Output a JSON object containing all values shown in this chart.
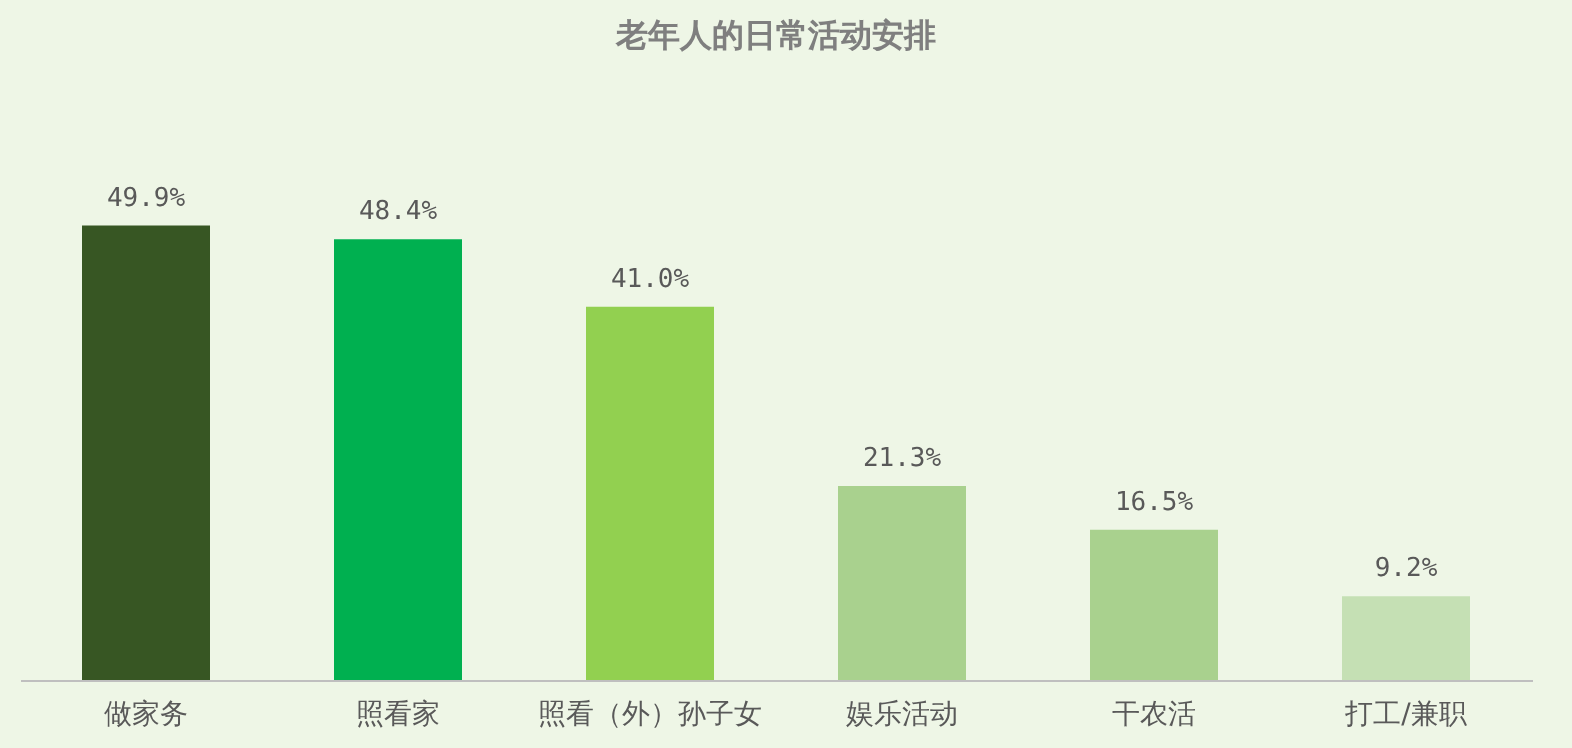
{
  "chart_data": {
    "type": "bar",
    "title": "老年人的日常活动安排",
    "categories": [
      "做家务",
      "照看家",
      "照看（外）孙子女",
      "娱乐活动",
      "干农活",
      "打工/兼职"
    ],
    "values": [
      49.9,
      48.4,
      41.0,
      21.3,
      16.5,
      9.2
    ],
    "colors": [
      "#375623",
      "#00b050",
      "#92d050",
      "#a9d18e",
      "#a9d18e",
      "#c5e0b4"
    ],
    "value_labels": [
      "49.9%",
      "48.4%",
      "41.0%",
      "21.3%",
      "16.5%",
      "9.2%"
    ]
  }
}
